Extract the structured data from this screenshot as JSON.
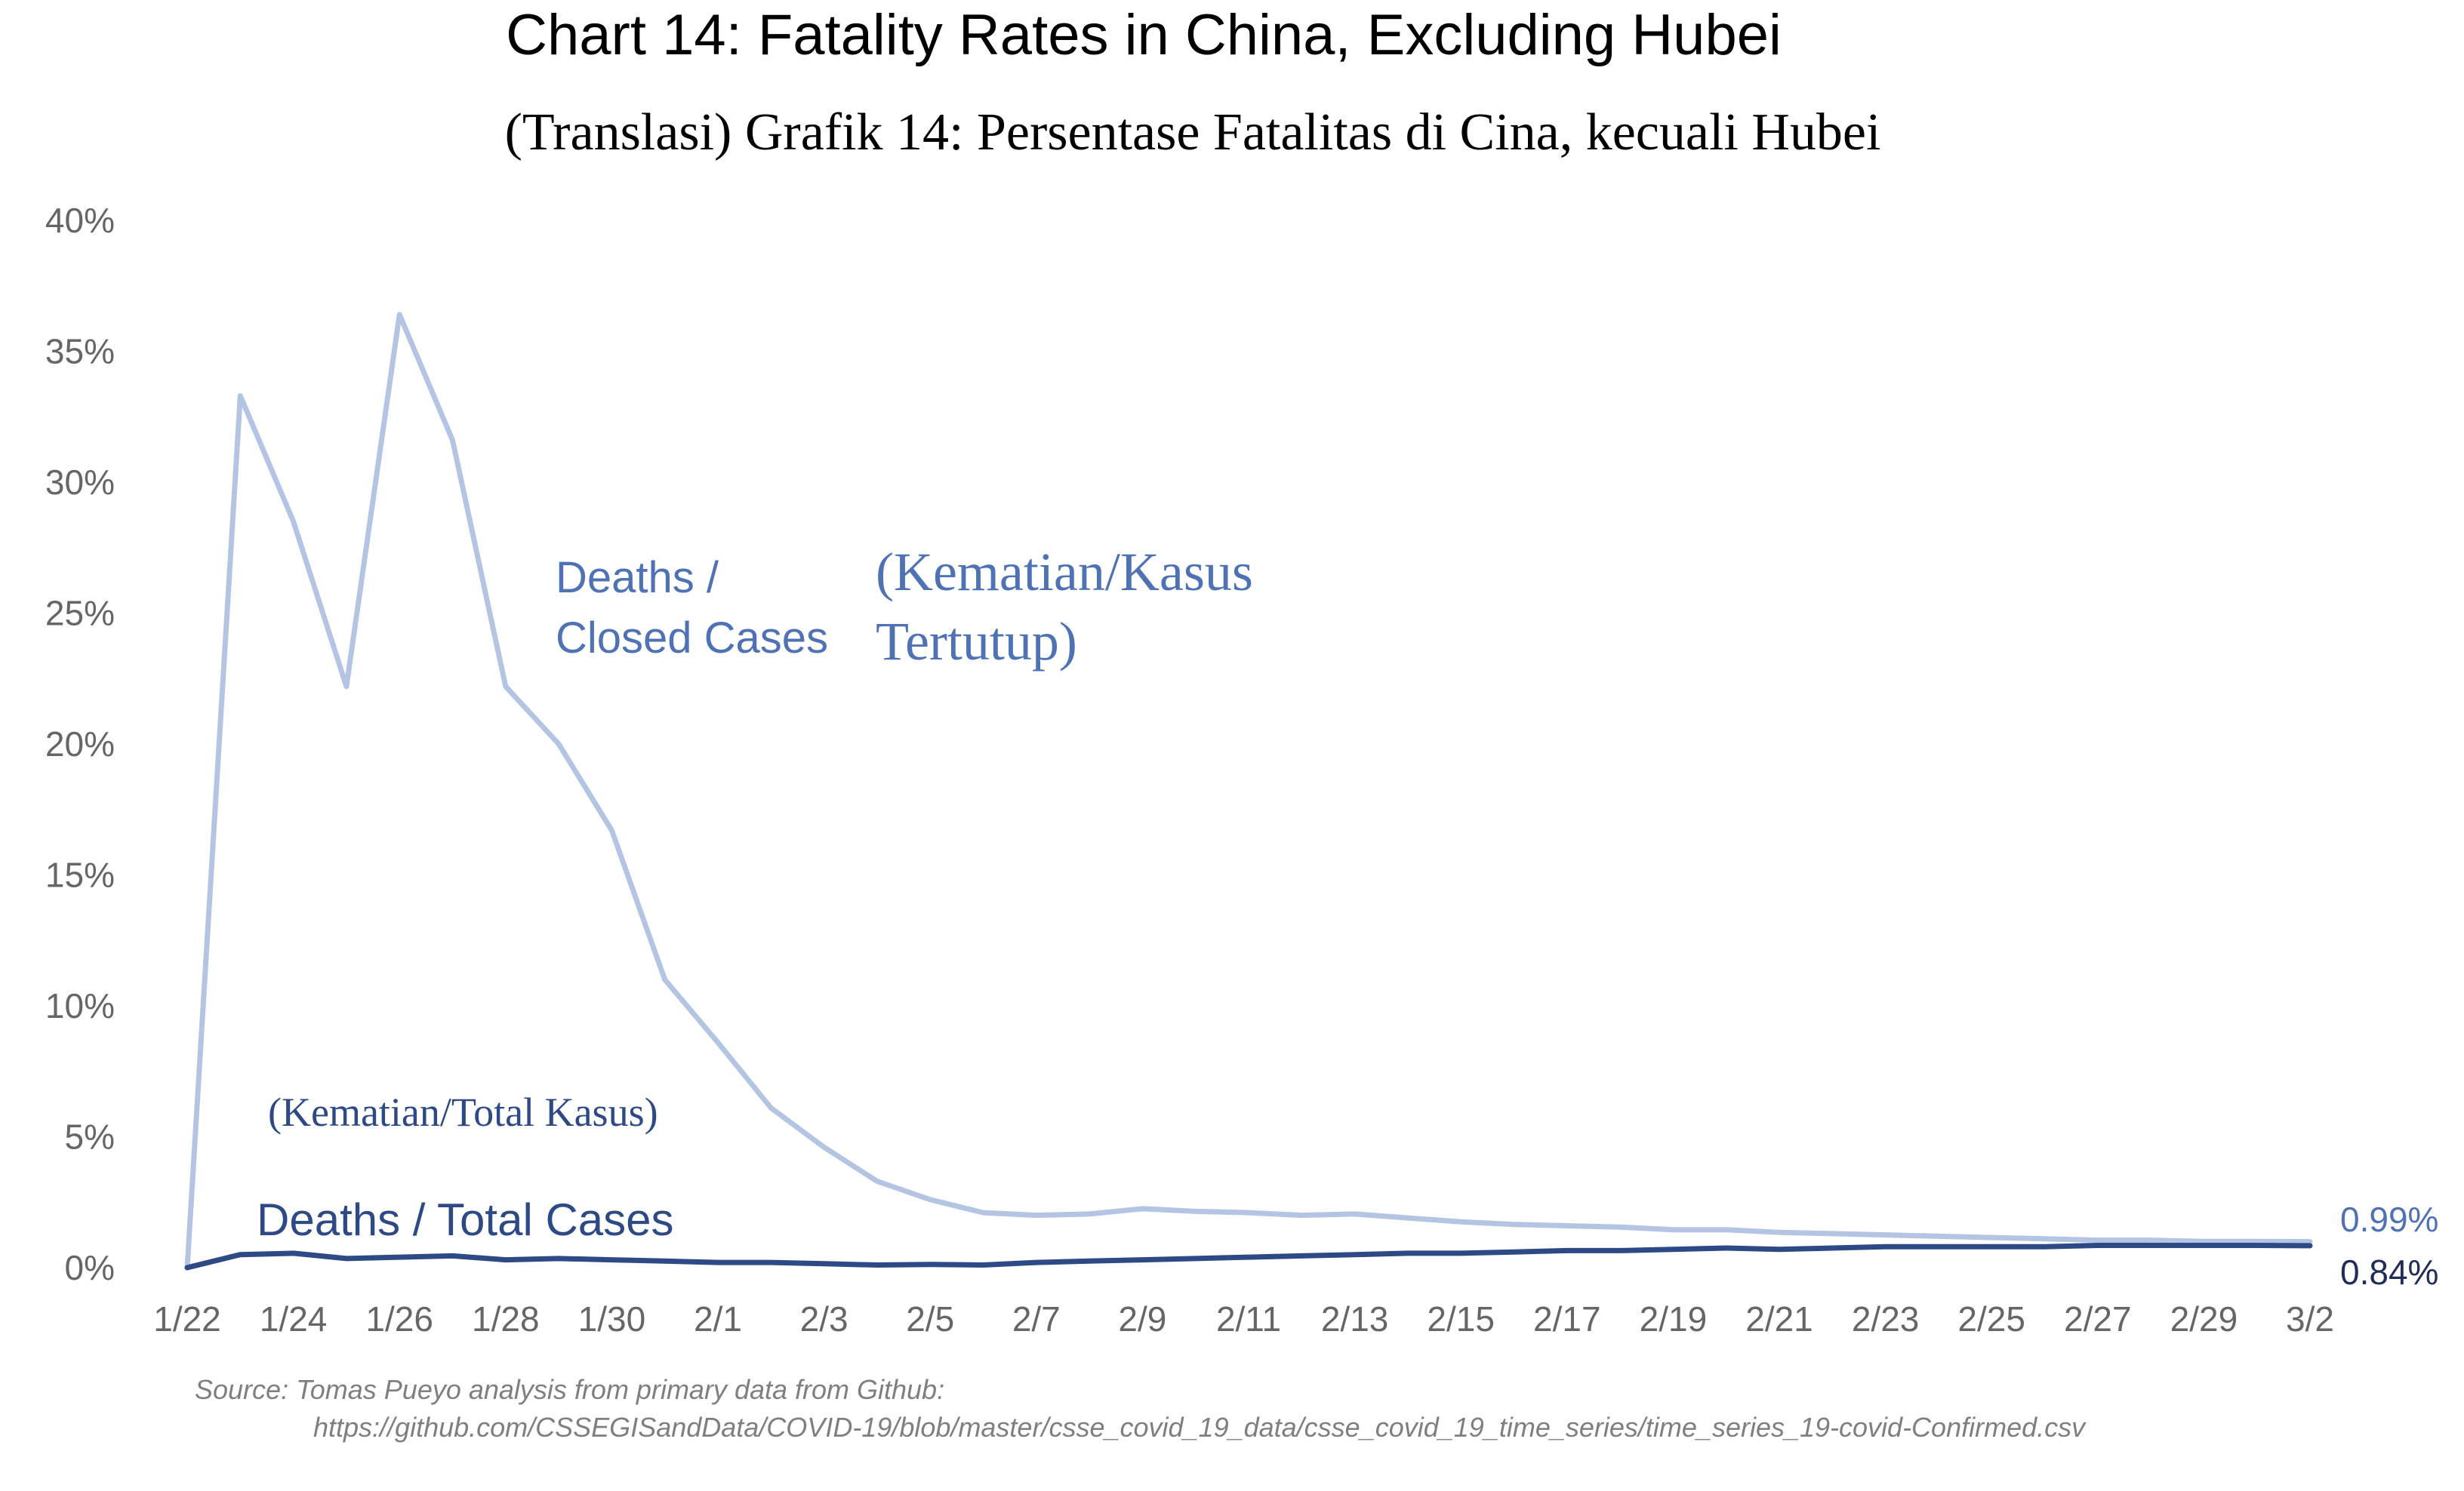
{
  "colors": {
    "closed_line": "#b4c5e4",
    "total_line": "#2e4a86",
    "closed_label": "#4f72b5",
    "total_label": "#2e4a86",
    "axis_text": "#666666",
    "title_text": "#000000",
    "source_text": "#7f7f7f"
  },
  "chart_data": {
    "type": "line",
    "title": "Chart 14: Fatality Rates in China, Excluding Hubei",
    "subtitle": "(Translasi) Grafik 14: Persentase Fatalitas di Cina, kecuali Hubei",
    "xlabel": "",
    "ylabel": "",
    "ylim": [
      0,
      40
    ],
    "yticks": [
      "0%",
      "5%",
      "10%",
      "15%",
      "20%",
      "25%",
      "30%",
      "35%",
      "40%"
    ],
    "categories": [
      "1/22",
      "1/23",
      "1/24",
      "1/25",
      "1/26",
      "1/27",
      "1/28",
      "1/29",
      "1/30",
      "1/31",
      "2/1",
      "2/2",
      "2/3",
      "2/4",
      "2/5",
      "2/6",
      "2/7",
      "2/8",
      "2/9",
      "2/10",
      "2/11",
      "2/12",
      "2/13",
      "2/14",
      "2/15",
      "2/16",
      "2/17",
      "2/18",
      "2/19",
      "2/20",
      "2/21",
      "2/22",
      "2/23",
      "2/24",
      "2/25",
      "2/26",
      "2/27",
      "2/28",
      "2/29",
      "3/1",
      "3/2"
    ],
    "xtick_labels": [
      "1/22",
      "1/24",
      "1/26",
      "1/28",
      "1/30",
      "2/1",
      "2/3",
      "2/5",
      "2/7",
      "2/9",
      "2/11",
      "2/13",
      "2/15",
      "2/17",
      "2/19",
      "2/21",
      "2/23",
      "2/25",
      "2/27",
      "2/29",
      "3/2"
    ],
    "series": [
      {
        "name": "Deaths / Closed Cases",
        "translation": "(Kematian/Kasus Tertutup)",
        "end_label": "0.99%",
        "values": [
          0,
          33.3,
          28.5,
          22.2,
          36.4,
          31.6,
          22.2,
          20.0,
          16.7,
          11.0,
          8.6,
          6.1,
          4.6,
          3.3,
          2.6,
          2.1,
          2.0,
          2.05,
          2.25,
          2.15,
          2.1,
          2.0,
          2.05,
          1.9,
          1.75,
          1.65,
          1.6,
          1.55,
          1.45,
          1.45,
          1.35,
          1.3,
          1.25,
          1.2,
          1.15,
          1.1,
          1.05,
          1.05,
          1.0,
          1.0,
          0.99
        ]
      },
      {
        "name": "Deaths / Total Cases",
        "translation": "(Kematian/Total Kasus)",
        "end_label": "0.84%",
        "values": [
          0,
          0.5,
          0.55,
          0.35,
          0.4,
          0.45,
          0.3,
          0.35,
          0.3,
          0.25,
          0.2,
          0.2,
          0.15,
          0.1,
          0.12,
          0.1,
          0.2,
          0.25,
          0.3,
          0.35,
          0.4,
          0.45,
          0.5,
          0.55,
          0.55,
          0.6,
          0.65,
          0.65,
          0.7,
          0.75,
          0.7,
          0.75,
          0.8,
          0.8,
          0.8,
          0.8,
          0.85,
          0.85,
          0.85,
          0.85,
          0.84
        ]
      }
    ]
  },
  "source": {
    "line1": "Source: Tomas Pueyo analysis from primary data from Github:",
    "line2": "https://github.com/CSSEGISandData/COVID-19/blob/master/csse_covid_19_data/csse_covid_19_time_series/time_series_19-covid-Confirmed.csv"
  }
}
